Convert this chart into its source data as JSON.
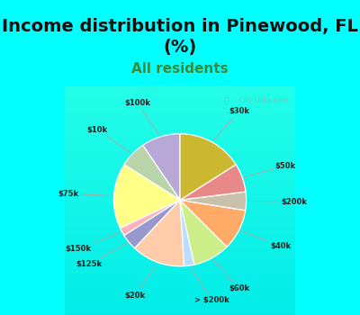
{
  "title": "Income distribution in Pinewood, FL\n(%)",
  "subtitle": "All residents",
  "labels": [
    "$100k",
    "$10k",
    "$75k",
    "$150k",
    "$125k",
    "$20k",
    "> $200k",
    "$60k",
    "$40k",
    "$200k",
    "$50k",
    "$30k"
  ],
  "values": [
    9.5,
    6.5,
    16.0,
    2.0,
    4.0,
    13.0,
    2.5,
    9.0,
    10.0,
    4.5,
    7.0,
    16.0
  ],
  "colors": [
    "#b8a8d8",
    "#b8d4a8",
    "#ffff88",
    "#ffb0bb",
    "#9898cc",
    "#ffccaa",
    "#bbddff",
    "#ccee88",
    "#ffaa66",
    "#c8c0a8",
    "#e88888",
    "#ccb830"
  ],
  "bg_color": "#00ffff",
  "chart_bg_top": "#f0fff8",
  "chart_bg_bot": "#c8eedc",
  "watermark": "City-Data.com",
  "title_fontsize": 14,
  "subtitle_fontsize": 11,
  "subtitle_color": "#3a8a3a",
  "startangle": 90
}
